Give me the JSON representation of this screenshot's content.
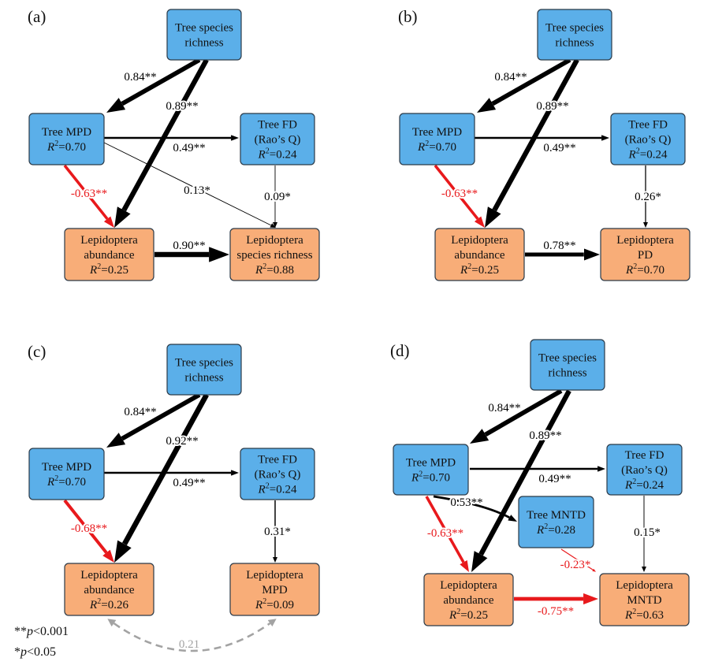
{
  "colors": {
    "tree_node": "#5BAFE9",
    "lepidoptera_node": "#F8AD78",
    "node_border": "#2B3A48",
    "positive_path": "#000000",
    "negative_path": "#E8191C",
    "covariance_path": "#A3A3A3"
  },
  "panels": [
    {
      "label": "(a)",
      "nodes": {
        "tsr": {
          "lines": [
            "Tree species",
            "richness"
          ],
          "group": "tree"
        },
        "mpd": {
          "lines": [
            "Tree MPD"
          ],
          "r2": "0.70",
          "group": "tree"
        },
        "fd": {
          "lines": [
            "Tree FD",
            "(Rao’s Q)"
          ],
          "r2": "0.24",
          "group": "tree"
        },
        "abund": {
          "lines": [
            "Lepidoptera",
            "abundance"
          ],
          "r2": "0.25",
          "group": "lepidoptera"
        },
        "target": {
          "lines": [
            "Lepidoptera",
            "species richness"
          ],
          "r2": "0.88",
          "group": "lepidoptera"
        }
      },
      "edges": [
        {
          "from": "tsr",
          "to": "mpd",
          "coef": 0.84,
          "label": "0.84**",
          "sign": "positive"
        },
        {
          "from": "tsr",
          "to": "abund",
          "coef": 0.89,
          "label": "0.89**",
          "sign": "positive"
        },
        {
          "from": "mpd",
          "to": "fd",
          "coef": 0.49,
          "label": "0.49**",
          "sign": "positive"
        },
        {
          "from": "mpd",
          "to": "target",
          "coef": 0.13,
          "label": "0.13*",
          "sign": "positive"
        },
        {
          "from": "fd",
          "to": "target",
          "coef": 0.09,
          "label": "0.09*",
          "sign": "positive"
        },
        {
          "from": "mpd",
          "to": "abund",
          "coef": -0.63,
          "label": "-0.63**",
          "sign": "negative"
        },
        {
          "from": "abund",
          "to": "target",
          "coef": 0.9,
          "label": "0.90**",
          "sign": "positive"
        }
      ]
    },
    {
      "label": "(b)",
      "nodes": {
        "tsr": {
          "lines": [
            "Tree species",
            "richness"
          ],
          "group": "tree"
        },
        "mpd": {
          "lines": [
            "Tree MPD"
          ],
          "r2": "0.70",
          "group": "tree"
        },
        "fd": {
          "lines": [
            "Tree FD",
            "(Rao’s Q)"
          ],
          "r2": "0.24",
          "group": "tree"
        },
        "abund": {
          "lines": [
            "Lepidoptera",
            "abundance"
          ],
          "r2": "0.25",
          "group": "lepidoptera"
        },
        "target": {
          "lines": [
            "Lepidoptera",
            "PD"
          ],
          "r2": "0.70",
          "group": "lepidoptera"
        }
      },
      "edges": [
        {
          "from": "tsr",
          "to": "mpd",
          "coef": 0.84,
          "label": "0.84**",
          "sign": "positive"
        },
        {
          "from": "tsr",
          "to": "abund",
          "coef": 0.89,
          "label": "0.89**",
          "sign": "positive"
        },
        {
          "from": "mpd",
          "to": "fd",
          "coef": 0.49,
          "label": "0.49**",
          "sign": "positive"
        },
        {
          "from": "fd",
          "to": "target",
          "coef": 0.26,
          "label": "0.26*",
          "sign": "positive"
        },
        {
          "from": "mpd",
          "to": "abund",
          "coef": -0.63,
          "label": "-0.63**",
          "sign": "negative"
        },
        {
          "from": "abund",
          "to": "target",
          "coef": 0.78,
          "label": "0.78**",
          "sign": "positive"
        }
      ]
    },
    {
      "label": "(c)",
      "nodes": {
        "tsr": {
          "lines": [
            "Tree species",
            "richness"
          ],
          "group": "tree"
        },
        "mpd": {
          "lines": [
            "Tree MPD"
          ],
          "r2": "0.70",
          "group": "tree"
        },
        "fd": {
          "lines": [
            "Tree FD",
            "(Rao’s Q)"
          ],
          "r2": "0.24",
          "group": "tree"
        },
        "abund": {
          "lines": [
            "Lepidoptera",
            "abundance"
          ],
          "r2": "0.26",
          "group": "lepidoptera"
        },
        "target": {
          "lines": [
            "Lepidoptera",
            "MPD"
          ],
          "r2": "0.09",
          "group": "lepidoptera"
        }
      },
      "edges": [
        {
          "from": "tsr",
          "to": "mpd",
          "coef": 0.84,
          "label": "0.84**",
          "sign": "positive"
        },
        {
          "from": "tsr",
          "to": "abund",
          "coef": 0.92,
          "label": "0.92**",
          "sign": "positive"
        },
        {
          "from": "mpd",
          "to": "fd",
          "coef": 0.49,
          "label": "0.49**",
          "sign": "positive"
        },
        {
          "from": "fd",
          "to": "target",
          "coef": 0.31,
          "label": "0.31*",
          "sign": "positive"
        },
        {
          "from": "mpd",
          "to": "abund",
          "coef": -0.68,
          "label": "-0.68**",
          "sign": "negative"
        },
        {
          "from": "abund",
          "to": "target",
          "coef": 0.21,
          "label": "0.21",
          "sign": "covariance"
        }
      ]
    },
    {
      "label": "(d)",
      "nodes": {
        "tsr": {
          "lines": [
            "Tree species",
            "richness"
          ],
          "group": "tree"
        },
        "mpd": {
          "lines": [
            "Tree MPD"
          ],
          "r2": "0.70",
          "group": "tree"
        },
        "fd": {
          "lines": [
            "Tree FD",
            "(Rao’s Q)"
          ],
          "r2": "0.24",
          "group": "tree"
        },
        "mntd": {
          "lines": [
            "Tree MNTD"
          ],
          "r2": "0.28",
          "group": "tree"
        },
        "abund": {
          "lines": [
            "Lepidoptera",
            "abundance"
          ],
          "r2": "0.25",
          "group": "lepidoptera"
        },
        "target": {
          "lines": [
            "Lepidoptera",
            "MNTD"
          ],
          "r2": "0.63",
          "group": "lepidoptera"
        }
      },
      "edges": [
        {
          "from": "tsr",
          "to": "mpd",
          "coef": 0.84,
          "label": "0.84**",
          "sign": "positive"
        },
        {
          "from": "tsr",
          "to": "abund",
          "coef": 0.89,
          "label": "0.89**",
          "sign": "positive"
        },
        {
          "from": "mpd",
          "to": "fd",
          "coef": 0.49,
          "label": "0.49**",
          "sign": "positive"
        },
        {
          "from": "mpd",
          "to": "mntd",
          "coef": 0.53,
          "label": "0.53**",
          "sign": "positive"
        },
        {
          "from": "mpd",
          "to": "abund",
          "coef": -0.63,
          "label": "-0.63**",
          "sign": "negative"
        },
        {
          "from": "mntd",
          "to": "target",
          "coef": -0.23,
          "label": "-0.23*",
          "sign": "negative"
        },
        {
          "from": "fd",
          "to": "target",
          "coef": 0.15,
          "label": "0.15*",
          "sign": "positive"
        },
        {
          "from": "abund",
          "to": "target",
          "coef": -0.75,
          "label": "-0.75**",
          "sign": "negative"
        }
      ]
    }
  ],
  "legend": [
    {
      "stars": "**",
      "p": "p",
      "threshold": "<0.001"
    },
    {
      "stars": "*",
      "p": "p",
      "threshold": "<0.05"
    }
  ]
}
